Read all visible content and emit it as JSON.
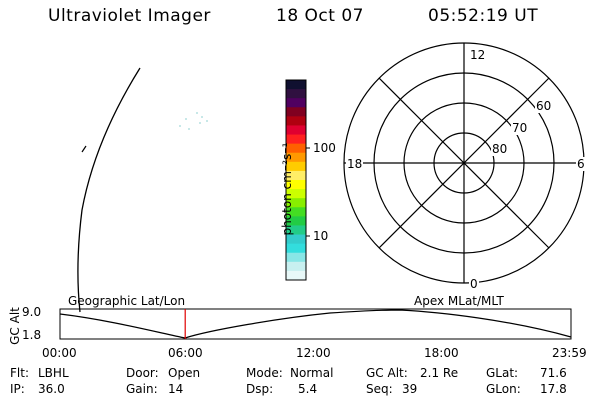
{
  "header": {
    "instrument": "Ultraviolet Imager",
    "date": "18 Oct 07",
    "time": "05:52:19 UT"
  },
  "colorbar": {
    "unit_label": "photon cm⁻²s⁻¹",
    "ticks": [
      "100",
      "10"
    ],
    "colors": [
      "#101030",
      "#301040",
      "#500060",
      "#800020",
      "#b00010",
      "#e00030",
      "#ff2020",
      "#ff6000",
      "#ff9900",
      "#ffcc00",
      "#ffee66",
      "#ffff00",
      "#ccff00",
      "#88ee00",
      "#44dd22",
      "#22cc44",
      "#22cc88",
      "#33cccc",
      "#33dddd",
      "#88e6e6",
      "#c8f0f0",
      "#e8f8f8"
    ]
  },
  "polar": {
    "mlt_labels": {
      "top": "12",
      "bottom": "0",
      "left": "18",
      "right": "6"
    },
    "lat_labels": [
      "60",
      "70",
      "80"
    ]
  },
  "timeline": {
    "left_label": "Geographic Lat/Lon",
    "right_label": "Apex MLat/MLT",
    "axis_title": "GC Alt",
    "y_ticks": [
      "9.0",
      "1.8"
    ],
    "x_ticks": [
      "00:00",
      "06:00",
      "12:00",
      "18:00",
      "23:59"
    ],
    "current_time_fraction": 0.245
  },
  "info": {
    "flt_label": "Flt:",
    "flt_value": "LBHL",
    "door_label": "Door:",
    "door_value": "Open",
    "mode_label": "Mode:",
    "mode_value": "Normal",
    "gcalt_label": "GC Alt:",
    "gcalt_value": "2.1 Re",
    "glat_label": "GLat:",
    "glat_value": "71.6",
    "ip_label": "IP:",
    "ip_value": "36.0",
    "gain_label": "Gain:",
    "gain_value": "14",
    "dsp_label": "Dsp:",
    "dsp_value": "5.4",
    "seq_label": "Seq:",
    "seq_value": "39",
    "glon_label": "GLon:",
    "glon_value": "17.8"
  }
}
